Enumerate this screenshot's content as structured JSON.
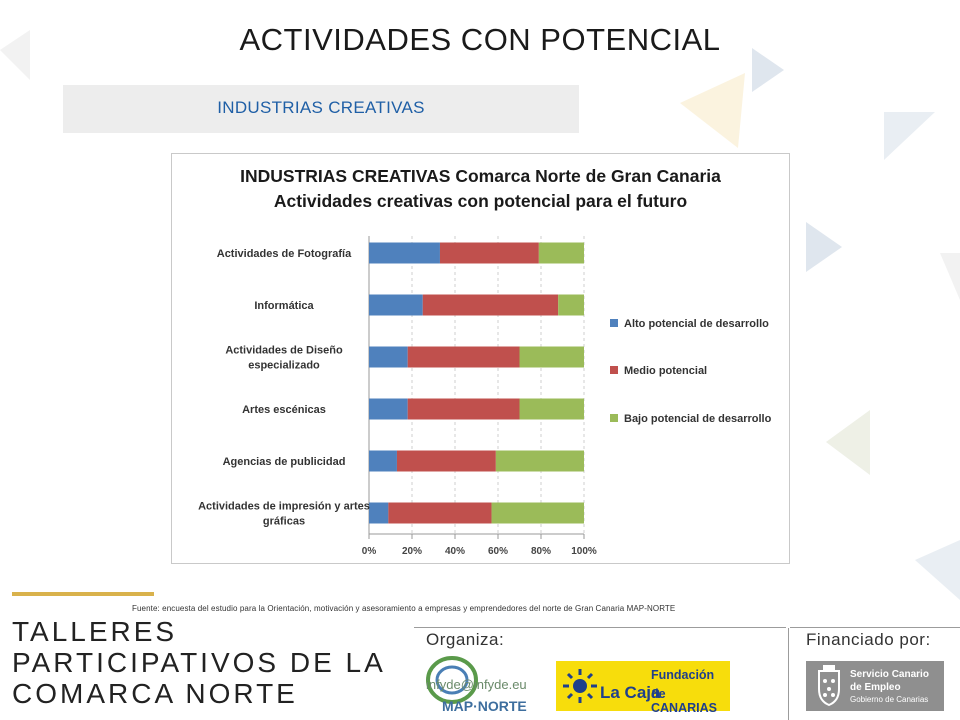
{
  "page": {
    "title": "ACTIVIDADES CON POTENCIAL",
    "section": "INDUSTRIAS CREATIVAS",
    "source_note": "Fuente: encuesta del estudio para la Orientación, motivación y asesoramiento a empresas y emprendedores del norte de Gran Canaria MAP-NORTE"
  },
  "chart_data": {
    "type": "bar",
    "orientation": "horizontal",
    "stacked": true,
    "title_line1": "INDUSTRIAS CREATIVAS Comarca Norte de Gran Canaria",
    "title_line2": "Actividades creativas con potencial para el futuro",
    "categories": [
      "Actividades de Fotografía",
      "Informática",
      "Actividades de Diseño especializado",
      "Artes escénicas",
      "Agencias de publicidad",
      "Actividades de impresión y artes gráficas"
    ],
    "category_lines": [
      [
        "Actividades de Fotografía"
      ],
      [
        "Informática"
      ],
      [
        "Actividades de Diseño",
        "especializado"
      ],
      [
        "Artes escénicas"
      ],
      [
        "Agencias de publicidad"
      ],
      [
        "Actividades de impresión y artes",
        "gráficas"
      ]
    ],
    "series": [
      {
        "name": "Alto potencial de desarrollo",
        "color": "#4f81bd",
        "values": [
          33,
          25,
          18,
          18,
          13,
          9
        ]
      },
      {
        "name": "Medio potencial",
        "color": "#c0504d",
        "values": [
          46,
          63,
          52,
          52,
          46,
          48
        ]
      },
      {
        "name": "Bajo potencial de desarrollo",
        "color": "#9bbb59",
        "values": [
          21,
          12,
          30,
          30,
          41,
          43
        ]
      }
    ],
    "xlim": [
      0,
      100
    ],
    "x_ticks": [
      "0%",
      "20%",
      "40%",
      "60%",
      "80%",
      "100%"
    ],
    "grid": true,
    "legend_position": "right"
  },
  "footer": {
    "talleres_lines": [
      "TALLERES",
      "PARTICIPATIVOS DE LA",
      "COMARCA NORTE"
    ],
    "organiza_label": "Organiza:",
    "financiado_label": "Financiado por:",
    "email": "infyde@infyde.eu",
    "map_logo_text": "MAP·NORTE",
    "caja_line1": "Fundación",
    "caja_line2": "La Caja",
    "caja_line3": "de CANARIAS",
    "sce_line1": "Servicio Canario",
    "sce_line2": "de Empleo",
    "sce_line3": "Gobierno de Canarias",
    "colors": {
      "accent_gold": "#d9b24c",
      "caja_yellow": "#f7dd0c",
      "title_blue": "#1f5fa6"
    }
  }
}
